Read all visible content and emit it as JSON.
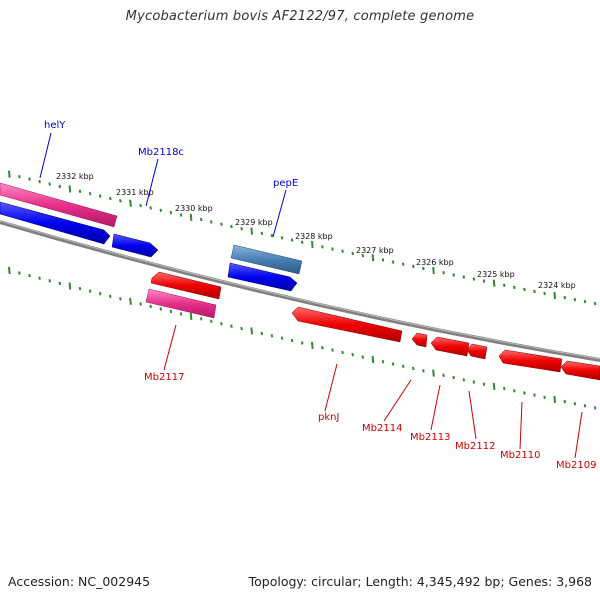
{
  "title": "Mycobacterium bovis AF2122/97, complete genome",
  "footer": {
    "accession": "Accession: NC_002945",
    "topology": "Topology: circular; Length: 4,345,492 bp; Genes: 3,968"
  },
  "scale_labels": [
    "2332 kbp",
    "2331 kbp",
    "2330 kbp",
    "2329 kbp",
    "2328 kbp",
    "2327 kbp",
    "2326 kbp",
    "2325 kbp",
    "2324 kbp"
  ],
  "genes_forward": [
    "helY",
    "Mb2118c",
    "pepE"
  ],
  "genes_reverse": [
    "Mb2117",
    "pknJ",
    "Mb2114",
    "Mb2113",
    "Mb2112",
    "Mb2110",
    "Mb2109"
  ],
  "colors": {
    "forward_label": "#0000cc",
    "reverse_label": "#cc0000",
    "backbone": "#808080",
    "tick": "#2e8b2e",
    "cds_blue": "#1010e8",
    "cds_red": "#e80000",
    "cds_pink": "#e8308a",
    "cds_steel": "#4a7fb5"
  }
}
